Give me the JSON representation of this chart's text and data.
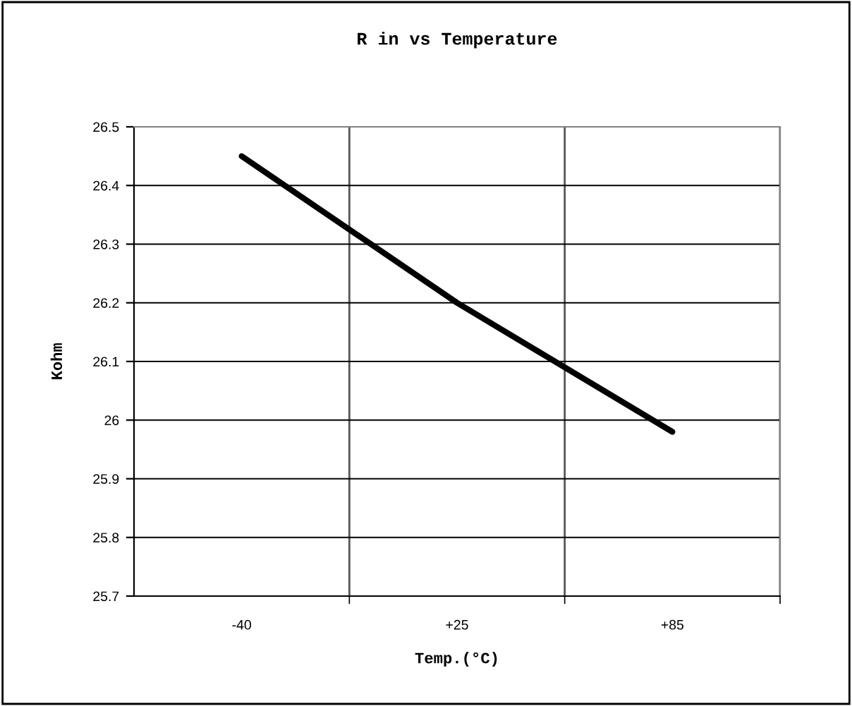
{
  "chart_data": {
    "type": "line",
    "title": "R in vs Temperature",
    "xlabel": "Temp.(°C)",
    "ylabel": "Kohm",
    "categories": [
      "-40",
      "+25",
      "+85"
    ],
    "series": [
      {
        "color": "#000000",
        "values": [
          26.45,
          26.2,
          25.98
        ]
      }
    ],
    "ylim": [
      25.7,
      26.5
    ],
    "yticks": [
      25.7,
      25.8,
      25.9,
      26,
      26.1,
      26.2,
      26.3,
      26.4,
      26.5
    ],
    "grid": true,
    "marker": "none",
    "line_style": "solid"
  }
}
